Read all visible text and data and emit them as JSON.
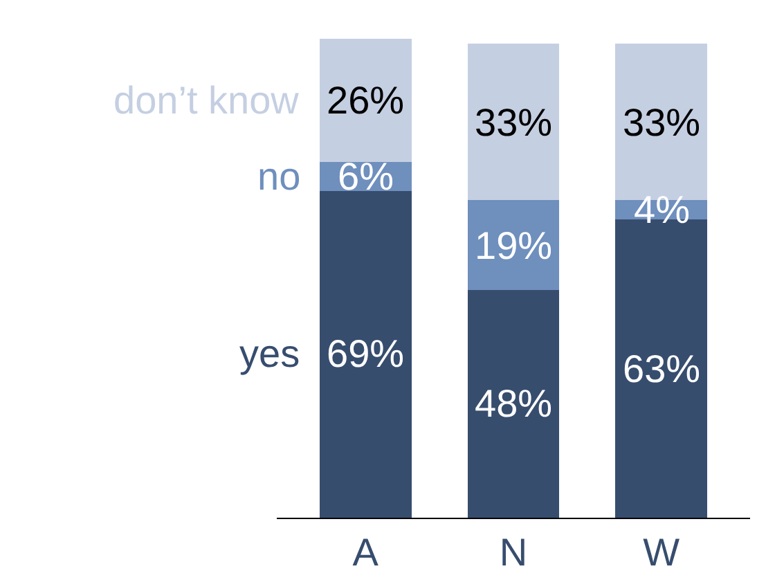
{
  "chart_data": {
    "type": "bar",
    "stacked": true,
    "categories": [
      "A",
      "N",
      "W"
    ],
    "series": [
      {
        "name": "yes",
        "color": "#374d6e",
        "values": [
          69,
          48,
          63
        ],
        "value_labels": [
          "69%",
          "48%",
          "63%"
        ]
      },
      {
        "name": "no",
        "color": "#6f8fbd",
        "values": [
          6,
          19,
          4
        ],
        "value_labels": [
          "6%",
          "19%",
          "4%"
        ]
      },
      {
        "name": "don’t know",
        "color": "#c5cfe2",
        "values": [
          26,
          33,
          33
        ],
        "value_labels": [
          "26%",
          "33%",
          "33%"
        ]
      }
    ],
    "legend": "left"
  }
}
